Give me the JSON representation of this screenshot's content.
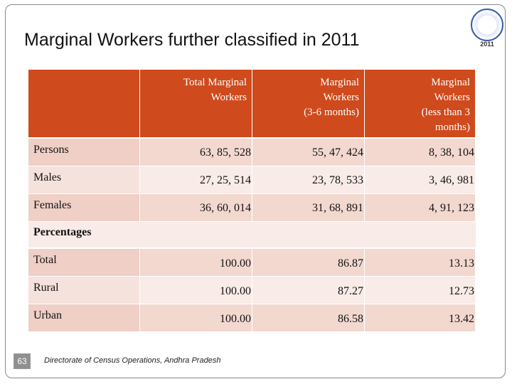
{
  "title": "Marginal Workers further classified in 2011",
  "logo_text": "2011",
  "table": {
    "header": [
      [
        "Total Marginal",
        "Workers"
      ],
      [
        "Marginal",
        "Workers",
        "(3-6 months)"
      ],
      [
        "Marginal",
        "Workers",
        "(less than 3",
        "months)"
      ]
    ],
    "rows": [
      {
        "label": "Persons",
        "cells": [
          "63, 85, 528",
          "55, 47, 424",
          "8, 38, 104"
        ]
      },
      {
        "label": "Males",
        "cells": [
          "27, 25, 514",
          "23, 78, 533",
          "3, 46, 981"
        ]
      },
      {
        "label": "Females",
        "cells": [
          "36, 60, 014",
          "31, 68, 891",
          "4, 91, 123"
        ]
      },
      {
        "label": "Percentages"
      },
      {
        "label": "Total",
        "cells": [
          "100.00",
          "86.87",
          "13.13"
        ]
      },
      {
        "label": "Rural",
        "cells": [
          "100.00",
          "87.27",
          "12.73"
        ]
      },
      {
        "label": "Urban",
        "cells": [
          "100.00",
          "86.58",
          "13.42"
        ]
      }
    ]
  },
  "footer": {
    "page": "63",
    "text": "Directorate of Census Operations, Andhra Pradesh"
  }
}
